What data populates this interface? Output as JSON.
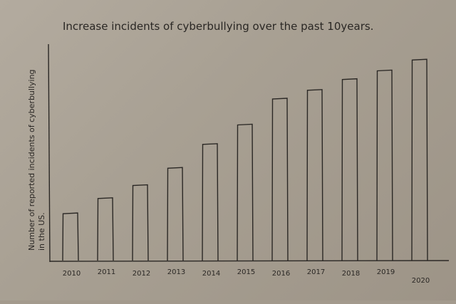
{
  "chart_data": {
    "type": "bar",
    "title": "Increase incidents of cyberbullying over the past 10years.",
    "ylabel_line1": "Number of reported incidents of cyberbullying",
    "ylabel_line2": "in the US.",
    "xlabel": "",
    "categories": [
      "2010",
      "2011",
      "2012",
      "2013",
      "2014",
      "2015",
      "2016",
      "2017",
      "2018",
      "2019",
      "2020"
    ],
    "values": [
      22,
      29,
      35,
      43,
      54,
      63,
      75,
      79,
      84,
      88,
      93
    ],
    "ylim": [
      0,
      100
    ],
    "grid": false,
    "legend": "none"
  }
}
